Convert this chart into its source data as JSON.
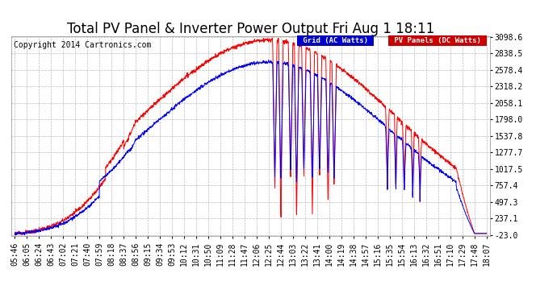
{
  "title": "Total PV Panel & Inverter Power Output Fri Aug 1 18:11",
  "copyright": "Copyright 2014 Cartronics.com",
  "legend_grid": "Grid (AC Watts)",
  "legend_pv": "PV Panels (DC Watts)",
  "grid_color": "#0000ff",
  "pv_color": "#ff0000",
  "legend_grid_bg": "#0000cc",
  "legend_pv_bg": "#cc0000",
  "background_color": "#ffffff",
  "plot_bg": "#ffffff",
  "grid_line_color": "#bbbbbb",
  "ylim_min": -23.0,
  "ylim_max": 3098.6,
  "yticks": [
    3098.6,
    2838.5,
    2578.4,
    2318.2,
    2058.1,
    1798.0,
    1537.8,
    1277.7,
    1017.5,
    757.4,
    497.3,
    237.1,
    -23.0
  ],
  "xtick_labels": [
    "05:46",
    "06:05",
    "06:24",
    "06:43",
    "07:02",
    "07:21",
    "07:40",
    "07:59",
    "08:18",
    "08:37",
    "08:56",
    "09:15",
    "09:34",
    "09:53",
    "10:12",
    "10:31",
    "10:50",
    "11:09",
    "11:28",
    "11:47",
    "12:06",
    "12:25",
    "12:44",
    "13:03",
    "13:22",
    "13:41",
    "14:00",
    "14:19",
    "14:38",
    "14:57",
    "15:16",
    "15:35",
    "15:54",
    "16:13",
    "16:32",
    "16:51",
    "17:10",
    "17:29",
    "17:48",
    "18:07"
  ],
  "title_fontsize": 12,
  "axis_fontsize": 7,
  "copyright_fontsize": 7
}
